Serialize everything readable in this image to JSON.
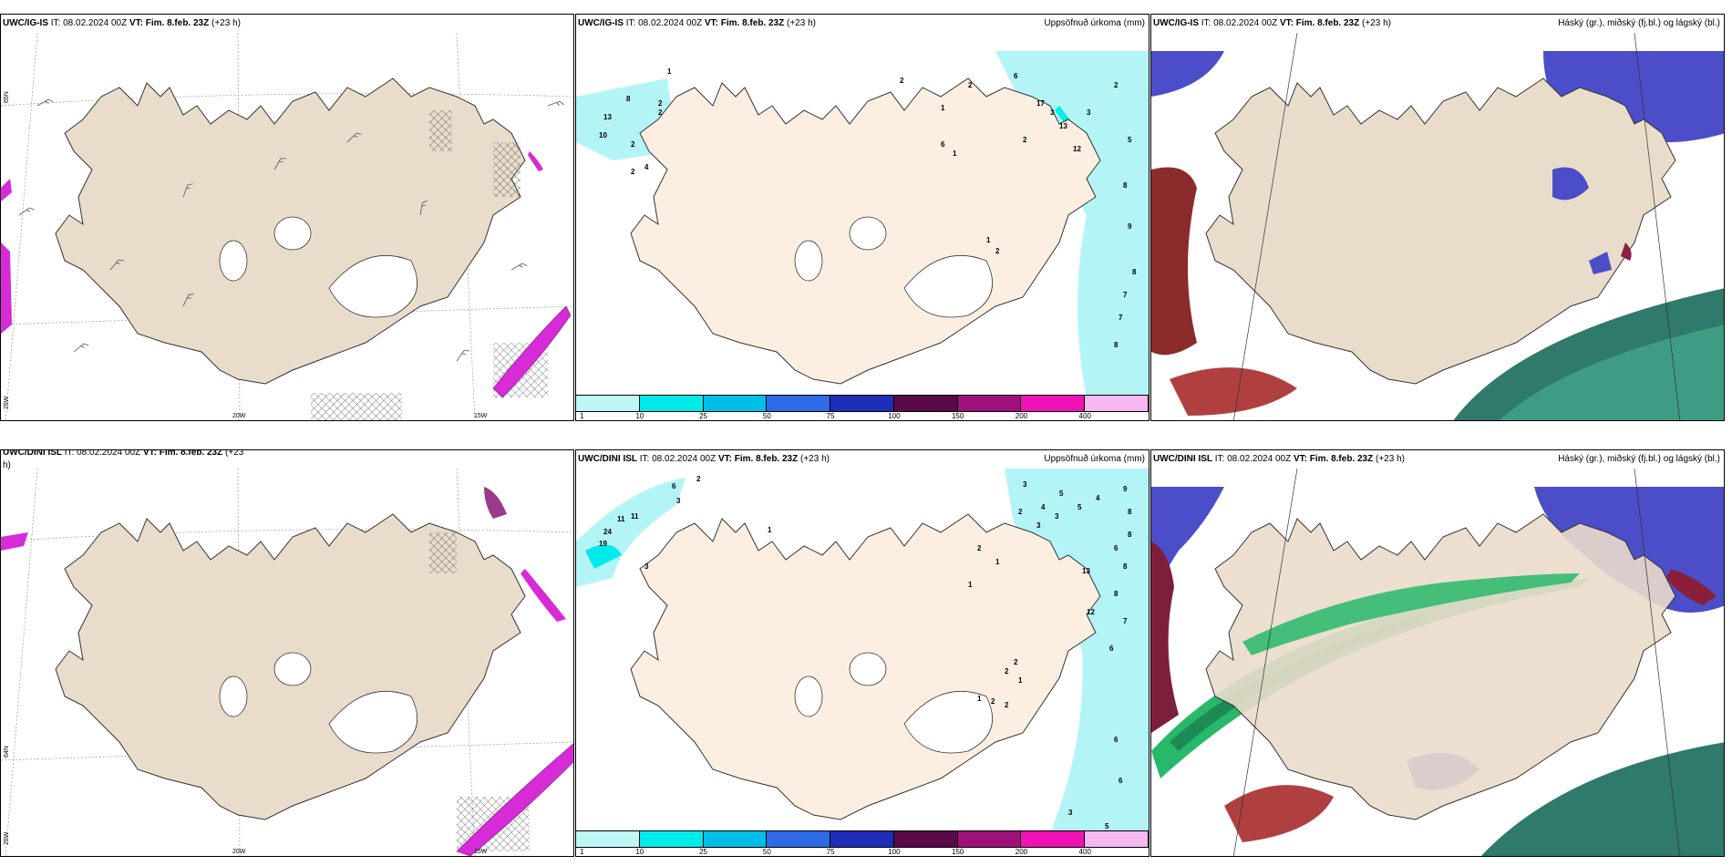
{
  "panels": [
    {
      "model": "UWC/IG-IS",
      "it_label": "IT:",
      "it": "08.02.2024 00Z",
      "vt_label": "VT:",
      "vt": "Fim. 8.feb. 23Z",
      "lead": "(+23 h)",
      "right": ""
    },
    {
      "model": "UWC/IG-IS",
      "it_label": "IT:",
      "it": "08.02.2024 00Z",
      "vt_label": "VT:",
      "vt": "Fim. 8.feb. 23Z",
      "lead": "(+23 h)",
      "right": "Uppsöfnuð úrkoma (mm)"
    },
    {
      "model": "UWC/IG-IS",
      "it_label": "IT:",
      "it": "08.02.2024 00Z",
      "vt_label": "VT:",
      "vt": "Fim. 8.feb. 23Z",
      "lead": "(+23 h)",
      "right": "Háský (gr.), miðský (fj.bl.) og lágský (bl.)"
    },
    {
      "model": "UWC/DINI ISL",
      "it_label": "IT:",
      "it": "08.02.2024 00Z",
      "vt_label": "VT:",
      "vt": "Fim. 8.feb. 23Z",
      "lead": "(+23",
      "lead2": "h)",
      "right": ""
    },
    {
      "model": "UWC/DINI ISL",
      "it_label": "IT:",
      "it": "08.02.2024 00Z",
      "vt_label": "VT:",
      "vt": "Fim. 8.feb. 23Z",
      "lead": "(+23 h)",
      "right": "Uppsöfnuð úrkoma (mm)"
    },
    {
      "model": "UWC/DINI ISL",
      "it_label": "IT:",
      "it": "08.02.2024 00Z",
      "vt_label": "VT:",
      "vt": "Fim. 8.feb. 23Z",
      "lead": "(+23 h)",
      "right": "Háský (gr.), miðský (fj.bl.) og lágský (bl.)"
    }
  ],
  "grid_labels": {
    "lat65": "65N",
    "lat64": "64N",
    "lon25": "25W",
    "lon20": "20W",
    "lon15": "15W"
  },
  "colorbar": {
    "labels": [
      "1",
      "10",
      "25",
      "50",
      "75",
      "100",
      "150",
      "200",
      "400"
    ],
    "colors": [
      "#bff7f7",
      "#00eaea",
      "#00bfe6",
      "#2e6be6",
      "#1f2eb8",
      "#5a0a48",
      "#a0107a",
      "#f012b4",
      "#f5b8f0"
    ]
  },
  "precip_numbers_top": [
    "1",
    "8",
    "13",
    "10",
    "2",
    "2",
    "4",
    "2",
    "2",
    "1",
    "2",
    "6",
    "17",
    "13",
    "12",
    "3",
    "2",
    "3",
    "2",
    "5",
    "8",
    "9",
    "8",
    "7",
    "7",
    "8",
    "6",
    "1",
    "1",
    "2",
    "2"
  ],
  "precip_numbers_bottom": [
    "2",
    "6",
    "3",
    "11",
    "11",
    "24",
    "19",
    "3",
    "1",
    "2",
    "1",
    "1",
    "3",
    "5",
    "4",
    "2",
    "3",
    "3",
    "5",
    "4",
    "9",
    "8",
    "8",
    "6",
    "8",
    "13",
    "8",
    "12",
    "7",
    "6",
    "2",
    "1",
    "1",
    "2",
    "2",
    "2",
    "6",
    "6",
    "3",
    "5",
    "5"
  ],
  "colors": {
    "land": "#eadccb",
    "land_precip": "#fcefe2",
    "cyan": "#b3f5f7",
    "magenta": "#d62bd6"
  }
}
